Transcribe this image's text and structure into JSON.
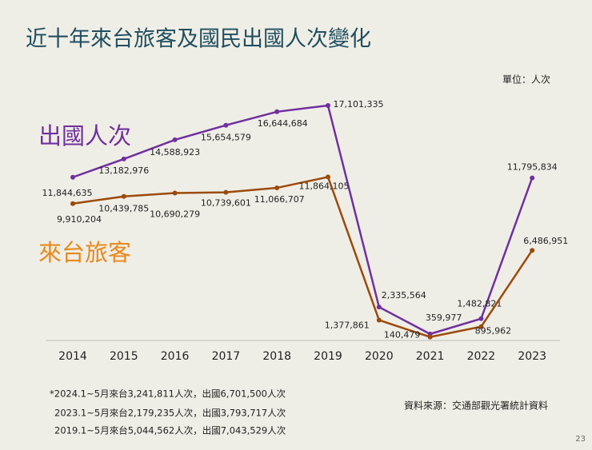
{
  "chart_data": {
    "type": "line",
    "title": "近十年來台旅客及國民出國人次變化",
    "unit": "單位：人次",
    "categories": [
      "2014",
      "2015",
      "2016",
      "2017",
      "2018",
      "2019",
      "2020",
      "2021",
      "2022",
      "2023"
    ],
    "series": [
      {
        "name": "出國人次",
        "color": "#7030a0",
        "label_color": "#7030a0",
        "values": [
          11844635,
          13182976,
          14588923,
          15654579,
          16644684,
          17101335,
          2335564,
          359977,
          1482821,
          11795834
        ],
        "value_labels": [
          "11,844,635",
          "13,182,976",
          "14,588,923",
          "15,654,579",
          "16,644,684",
          "17,101,335",
          "2,335,564",
          "359,977",
          "1,482,821",
          "11,795,834"
        ]
      },
      {
        "name": "來台旅客",
        "color": "#9c4a0c",
        "label_color": "#e8891c",
        "values": [
          9910204,
          10439785,
          10690279,
          10739601,
          11066707,
          11864105,
          1377861,
          140479,
          895962,
          6486951
        ],
        "value_labels": [
          "9,910,204",
          "10,439,785",
          "10,690,279",
          "10,739,601",
          "11,066,707",
          "11,864,105",
          "1,377,861",
          "140,479",
          "895,962",
          "6,486,951"
        ]
      }
    ],
    "notes": [
      "*2024.1~5月來台3,241,811人次，出國6,701,500人次",
      "2023.1~5月來台2,179,235人次，出國3,793,717人次",
      "2019.1~5月來台5,044,562人次，出國7,043,529人次"
    ],
    "source": "資料來源：交通部觀光署統計資料",
    "page_number": "23"
  }
}
